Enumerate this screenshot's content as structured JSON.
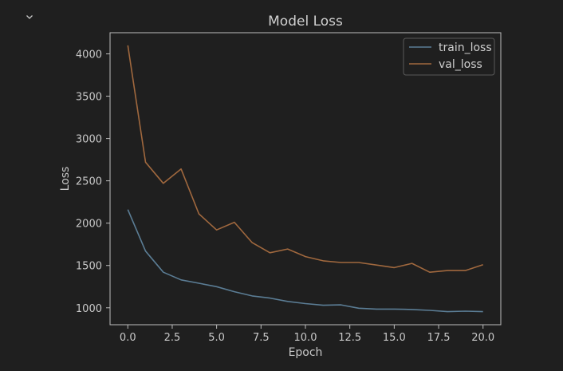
{
  "toggle_icon": "chevron-down-icon",
  "colors": {
    "background": "#1f1f1f",
    "frame": "#bcbcbc",
    "text": "#c8c8c8",
    "train_loss": "#5b7d95",
    "val_loss": "#a0683e"
  },
  "chart_data": {
    "type": "line",
    "title": "Model Loss",
    "xlabel": "Epoch",
    "ylabel": "Loss",
    "xlim": [
      -1,
      21
    ],
    "ylim": [
      800,
      4250
    ],
    "xticks": [
      0.0,
      2.5,
      5.0,
      7.5,
      10.0,
      12.5,
      15.0,
      17.5,
      20.0
    ],
    "xtick_labels": [
      "0.0",
      "2.5",
      "5.0",
      "7.5",
      "10.0",
      "12.5",
      "15.0",
      "17.5",
      "20.0"
    ],
    "yticks": [
      1000,
      1500,
      2000,
      2500,
      3000,
      3500,
      4000
    ],
    "ytick_labels": [
      "1000",
      "1500",
      "2000",
      "2500",
      "3000",
      "3500",
      "4000"
    ],
    "grid": false,
    "legend_position": "top-right",
    "x": [
      0,
      1,
      2,
      3,
      4,
      5,
      6,
      7,
      8,
      9,
      10,
      11,
      12,
      13,
      14,
      15,
      16,
      17,
      18,
      19,
      20
    ],
    "series": [
      {
        "name": "train_loss",
        "values": [
          2160,
          1670,
          1420,
          1330,
          1290,
          1250,
          1190,
          1140,
          1115,
          1075,
          1050,
          1030,
          1035,
          995,
          985,
          985,
          980,
          970,
          955,
          960,
          955
        ]
      },
      {
        "name": "val_loss",
        "values": [
          4100,
          2720,
          2470,
          2640,
          2110,
          1920,
          2010,
          1770,
          1650,
          1695,
          1605,
          1555,
          1535,
          1535,
          1505,
          1475,
          1525,
          1420,
          1440,
          1440,
          1510
        ]
      }
    ]
  }
}
